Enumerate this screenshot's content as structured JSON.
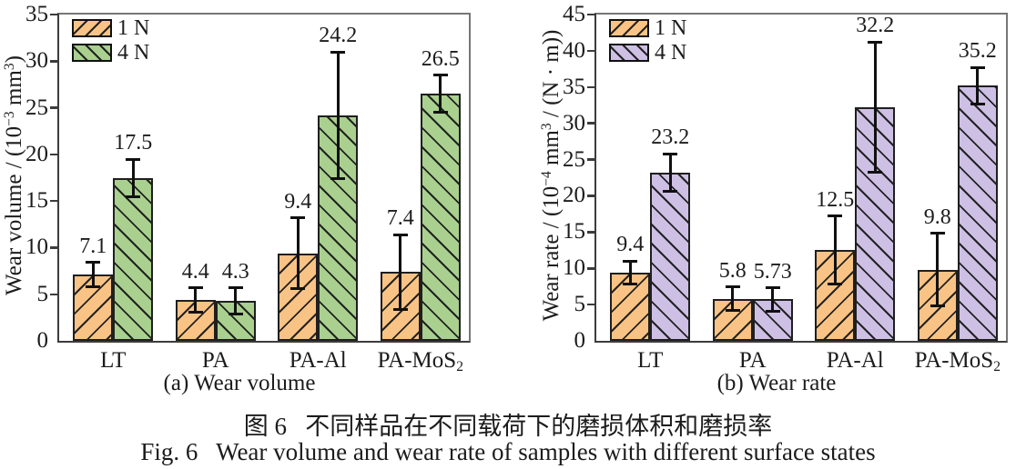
{
  "figure": {
    "caption_zh": "图 6   不同样品在不同载荷下的磨损体积和磨损率",
    "caption_en": "Fig. 6   Wear volume and wear rate of samples with different surface states"
  },
  "chart_data": [
    {
      "type": "bar",
      "panel": "(a) Wear volume",
      "ylabel": "Wear volume / (10^−3^ mm^3^)",
      "categories": [
        "LT",
        "PA",
        "PA-Al",
        "PA-MoS~2~"
      ],
      "ylim": [
        0,
        35
      ],
      "ytick_step": 5,
      "grid": false,
      "legend_position": "top-left inside",
      "bar_edge_color": "#1f1f1f",
      "series": [
        {
          "name": "1 N",
          "fill": "#f9c385",
          "hatch": "/",
          "values": [
            7.1,
            4.4,
            9.4,
            7.4
          ],
          "value_labels": [
            "7.1",
            "4.4",
            "9.4",
            "7.4"
          ],
          "errors": [
            1.3,
            1.3,
            3.8,
            4.0
          ]
        },
        {
          "name": "4 N",
          "fill": "#a9d08f",
          "hatch": "\\",
          "values": [
            17.5,
            4.3,
            24.2,
            26.5
          ],
          "value_labels": [
            "17.5",
            "4.3",
            "24.2",
            "26.5"
          ],
          "errors": [
            2.0,
            1.4,
            6.8,
            2.0
          ]
        }
      ]
    },
    {
      "type": "bar",
      "panel": "(b) Wear rate",
      "ylabel": "Wear rate / (10^−4^ mm^3^ / (N · m))",
      "categories": [
        "LT",
        "PA",
        "PA-Al",
        "PA-MoS~2~"
      ],
      "ylim": [
        0,
        45
      ],
      "ytick_step": 5,
      "grid": false,
      "legend_position": "top-left inside",
      "bar_edge_color": "#1f1f1f",
      "series": [
        {
          "name": "1 N",
          "fill": "#f9c385",
          "hatch": "/",
          "values": [
            9.4,
            5.8,
            12.5,
            9.8
          ],
          "value_labels": [
            "9.4",
            "5.8",
            "12.5",
            "9.8"
          ],
          "errors": [
            1.6,
            1.6,
            4.7,
            5.0
          ]
        },
        {
          "name": "4 N",
          "fill": "#cdc0e4",
          "hatch": "\\",
          "values": [
            23.2,
            5.73,
            32.2,
            35.2
          ],
          "value_labels": [
            "23.2",
            "5.73",
            "32.2",
            "35.2"
          ],
          "errors": [
            2.6,
            1.6,
            9.0,
            2.5
          ]
        }
      ]
    }
  ]
}
